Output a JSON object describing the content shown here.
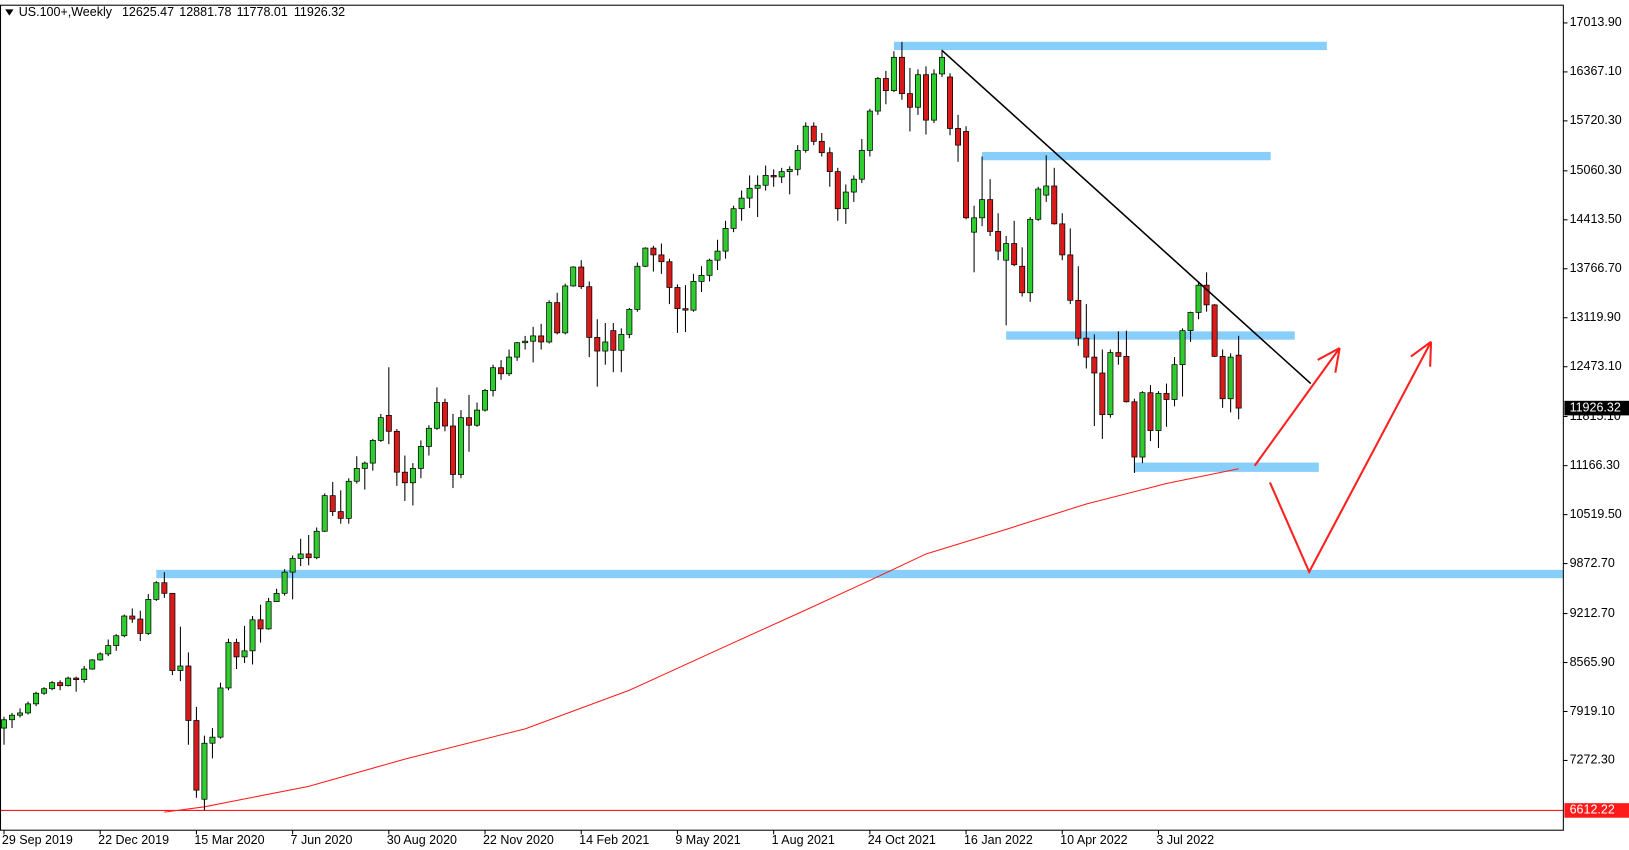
{
  "chart_data": {
    "type": "candlestick",
    "title": "US.100+,Weekly",
    "categories": [
      "29 Sep 2019",
      null,
      null,
      null,
      null,
      null,
      null,
      null,
      null,
      null,
      null,
      null,
      "22 Dec 2019",
      null,
      null,
      null,
      null,
      null,
      null,
      null,
      null,
      null,
      null,
      null,
      "15 Mar 2020",
      null,
      null,
      null,
      null,
      null,
      null,
      null,
      null,
      null,
      null,
      null,
      "7 Jun 2020",
      null,
      null,
      null,
      null,
      null,
      null,
      null,
      null,
      null,
      null,
      null,
      "30 Aug 2020",
      null,
      null,
      null,
      null,
      null,
      null,
      null,
      null,
      null,
      null,
      null,
      "22 Nov 2020",
      null,
      null,
      null,
      null,
      null,
      null,
      null,
      null,
      null,
      null,
      null,
      "14 Feb 2021",
      null,
      null,
      null,
      null,
      null,
      null,
      null,
      null,
      null,
      null,
      null,
      "9 May 2021",
      null,
      null,
      null,
      null,
      null,
      null,
      null,
      null,
      null,
      null,
      null,
      "1 Aug 2021",
      null,
      null,
      null,
      null,
      null,
      null,
      null,
      null,
      null,
      null,
      null,
      "24 Oct 2021",
      null,
      null,
      null,
      null,
      null,
      null,
      null,
      null,
      null,
      null,
      null,
      "16 Jan 2022",
      null,
      null,
      null,
      null,
      null,
      null,
      null,
      null,
      null,
      null,
      null,
      "10 Apr 2022",
      null,
      null,
      null,
      null,
      null,
      null,
      null,
      null,
      null,
      null,
      null,
      "3 Jul 2022",
      null,
      null,
      null,
      null,
      null,
      null,
      null,
      null,
      null,
      null
    ],
    "ohlc": [
      [
        7700,
        7850,
        7480,
        7810
      ],
      [
        7810,
        7900,
        7700,
        7870
      ],
      [
        7870,
        7960,
        7840,
        7900
      ],
      [
        7900,
        8050,
        7880,
        8020
      ],
      [
        8020,
        8180,
        7990,
        8160
      ],
      [
        8160,
        8240,
        8140,
        8220
      ],
      [
        8220,
        8320,
        8200,
        8300
      ],
      [
        8300,
        8330,
        8200,
        8260
      ],
      [
        8260,
        8380,
        8250,
        8360
      ],
      [
        8360,
        8380,
        8180,
        8340
      ],
      [
        8340,
        8520,
        8300,
        8480
      ],
      [
        8480,
        8610,
        8470,
        8600
      ],
      [
        8600,
        8700,
        8590,
        8680
      ],
      [
        8680,
        8870,
        8650,
        8790
      ],
      [
        8790,
        8940,
        8720,
        8920
      ],
      [
        8920,
        9200,
        8900,
        9180
      ],
      [
        9180,
        9280,
        9090,
        9140
      ],
      [
        9140,
        9250,
        8850,
        8950
      ],
      [
        8950,
        9470,
        8930,
        9400
      ],
      [
        9400,
        9640,
        9380,
        9620
      ],
      [
        9620,
        9760,
        9420,
        9480
      ],
      [
        9480,
        9480,
        8400,
        8460
      ],
      [
        8460,
        9040,
        8320,
        8520
      ],
      [
        8520,
        8700,
        7480,
        7800
      ],
      [
        7800,
        7980,
        6780,
        6880
      ],
      [
        6760,
        7600,
        6612,
        7500
      ],
      [
        7500,
        7700,
        7300,
        7580
      ],
      [
        7580,
        8300,
        7560,
        8230
      ],
      [
        8230,
        8880,
        8200,
        8830
      ],
      [
        8830,
        8880,
        8480,
        8640
      ],
      [
        8640,
        9050,
        8560,
        8720
      ],
      [
        8720,
        9180,
        8540,
        9130
      ],
      [
        9130,
        9330,
        8830,
        9010
      ],
      [
        9010,
        9420,
        9000,
        9370
      ],
      [
        9370,
        9540,
        9370,
        9480
      ],
      [
        9480,
        9800,
        9450,
        9760
      ],
      [
        9760,
        9980,
        9400,
        9940
      ],
      [
        9940,
        10200,
        9840,
        10000
      ],
      [
        10000,
        10250,
        9850,
        9950
      ],
      [
        9950,
        10350,
        9930,
        10300
      ],
      [
        10300,
        10800,
        10290,
        10770
      ],
      [
        10770,
        10950,
        10500,
        10560
      ],
      [
        10560,
        10840,
        10400,
        10470
      ],
      [
        10470,
        11000,
        10400,
        10960
      ],
      [
        10960,
        11290,
        10930,
        11130
      ],
      [
        11130,
        11220,
        10850,
        11200
      ],
      [
        11200,
        11520,
        11100,
        11500
      ],
      [
        11500,
        11850,
        11480,
        11800
      ],
      [
        11830,
        12466,
        11450,
        11620
      ],
      [
        11620,
        11650,
        10900,
        11080
      ],
      [
        11080,
        11300,
        10700,
        10940
      ],
      [
        10940,
        11200,
        10640,
        11130
      ],
      [
        11130,
        11500,
        11000,
        11420
      ],
      [
        11420,
        11700,
        11300,
        11660
      ],
      [
        11660,
        12200,
        11640,
        12000
      ],
      [
        12000,
        12050,
        11620,
        11690
      ],
      [
        11690,
        11850,
        10870,
        11050
      ],
      [
        11050,
        11900,
        11000,
        11800
      ],
      [
        11800,
        12100,
        11350,
        11700
      ],
      [
        11700,
        12000,
        11680,
        11900
      ],
      [
        11900,
        12180,
        11880,
        12160
      ],
      [
        12160,
        12500,
        12080,
        12460
      ],
      [
        12460,
        12560,
        12300,
        12380
      ],
      [
        12380,
        12700,
        12350,
        12600
      ],
      [
        12600,
        12800,
        12550,
        12790
      ],
      [
        12790,
        12880,
        12700,
        12810
      ],
      [
        12810,
        13000,
        12530,
        12880
      ],
      [
        12880,
        13040,
        12700,
        12800
      ],
      [
        12800,
        13350,
        12780,
        13320
      ],
      [
        13320,
        13450,
        12900,
        12920
      ],
      [
        12920,
        13570,
        12900,
        13540
      ],
      [
        13540,
        13800,
        13530,
        13790
      ],
      [
        13790,
        13880,
        13500,
        13530
      ],
      [
        13530,
        13600,
        12600,
        12860
      ],
      [
        12860,
        13100,
        12210,
        12680
      ],
      [
        12680,
        13050,
        12500,
        12800
      ],
      [
        12950,
        13050,
        12400,
        12690
      ],
      [
        12690,
        12980,
        12400,
        12900
      ],
      [
        12900,
        13250,
        12850,
        13230
      ],
      [
        13230,
        13850,
        13200,
        13800
      ],
      [
        13800,
        14050,
        13790,
        14040
      ],
      [
        14040,
        14070,
        13730,
        13950
      ],
      [
        13950,
        14100,
        13700,
        13860
      ],
      [
        13860,
        13900,
        13300,
        13520
      ],
      [
        13520,
        13560,
        12920,
        13240
      ],
      [
        13240,
        13550,
        12930,
        13220
      ],
      [
        13220,
        13700,
        13200,
        13600
      ],
      [
        13600,
        13800,
        13460,
        13680
      ],
      [
        13680,
        13900,
        13600,
        13880
      ],
      [
        13880,
        14150,
        13750,
        14000
      ],
      [
        14000,
        14400,
        13900,
        14300
      ],
      [
        14300,
        14600,
        14250,
        14560
      ],
      [
        14560,
        14800,
        14400,
        14700
      ],
      [
        14700,
        15000,
        14570,
        14830
      ],
      [
        14830,
        15000,
        14450,
        14870
      ],
      [
        14870,
        15130,
        14800,
        15000
      ],
      [
        15000,
        15080,
        14850,
        14980
      ],
      [
        14980,
        15100,
        14900,
        15050
      ],
      [
        15050,
        15120,
        14750,
        15080
      ],
      [
        15080,
        15400,
        15000,
        15330
      ],
      [
        15330,
        15700,
        15300,
        15650
      ],
      [
        15650,
        15700,
        15400,
        15450
      ],
      [
        15450,
        15560,
        15250,
        15300
      ],
      [
        15300,
        15370,
        14850,
        15050
      ],
      [
        15050,
        15100,
        14400,
        14560
      ],
      [
        14560,
        14880,
        14360,
        14780
      ],
      [
        14780,
        15000,
        14650,
        14950
      ],
      [
        14950,
        15480,
        14900,
        15330
      ],
      [
        15330,
        15880,
        15250,
        15850
      ],
      [
        15850,
        16300,
        15800,
        16280
      ],
      [
        16280,
        16380,
        15940,
        16120
      ],
      [
        16120,
        16640,
        16100,
        16560
      ],
      [
        16560,
        16764,
        16000,
        16080
      ],
      [
        16080,
        16420,
        15580,
        15900
      ],
      [
        15900,
        16400,
        15800,
        16330
      ],
      [
        16330,
        16440,
        15540,
        15730
      ],
      [
        15730,
        16400,
        15690,
        16340
      ],
      [
        16340,
        16660,
        16300,
        16560
      ],
      [
        16300,
        16350,
        15530,
        15620
      ],
      [
        15620,
        15800,
        15180,
        15400
      ],
      [
        15580,
        15650,
        14420,
        14440
      ],
      [
        14250,
        14600,
        13720,
        14440
      ],
      [
        14440,
        15250,
        14330,
        14680
      ],
      [
        14680,
        14950,
        14200,
        14260
      ],
      [
        14260,
        14500,
        13880,
        14000
      ],
      [
        13880,
        14200,
        13020,
        14100
      ],
      [
        14100,
        14400,
        13800,
        13820
      ],
      [
        13800,
        14050,
        13400,
        13450
      ],
      [
        13450,
        14450,
        13330,
        14420
      ],
      [
        14420,
        14850,
        14400,
        14820
      ],
      [
        14740,
        15265,
        14650,
        14860
      ],
      [
        14860,
        15100,
        14350,
        14360
      ],
      [
        14360,
        14500,
        13880,
        13950
      ],
      [
        13950,
        14300,
        13300,
        13350
      ],
      [
        13350,
        13800,
        12750,
        12850
      ],
      [
        12850,
        13300,
        12450,
        12600
      ],
      [
        12600,
        12900,
        11690,
        12390
      ],
      [
        12390,
        12700,
        11520,
        11840
      ],
      [
        11840,
        12700,
        11800,
        12660
      ],
      [
        12660,
        12940,
        12500,
        12610
      ],
      [
        12610,
        12950,
        12000,
        12010
      ],
      [
        12010,
        12050,
        11070,
        11280
      ],
      [
        11280,
        12150,
        11200,
        12130
      ],
      [
        12130,
        12230,
        11490,
        11630
      ],
      [
        11630,
        12150,
        11400,
        12120
      ],
      [
        12120,
        12250,
        11680,
        12040
      ],
      [
        12040,
        12600,
        11950,
        12500
      ],
      [
        12500,
        12980,
        12080,
        12950
      ],
      [
        12950,
        13200,
        12800,
        13190
      ],
      [
        13190,
        13600,
        13100,
        13550
      ],
      [
        13550,
        13720,
        13200,
        13290
      ],
      [
        13290,
        13300,
        12600,
        12610
      ],
      [
        12610,
        12700,
        11930,
        12050
      ],
      [
        12050,
        12650,
        11870,
        12600
      ],
      [
        12625.47,
        12881.78,
        11778.01,
        11926.32
      ]
    ],
    "up_color": "#2ecc2e",
    "down_color": "#d91a1a",
    "xlim": [
      -0.5,
      194.5
    ],
    "ylim": [
      6351,
      17248
    ],
    "yticks": [
      {
        "value": 17013.9,
        "label": "17013.90"
      },
      {
        "value": 16367.1,
        "label": "16367.10"
      },
      {
        "value": 15720.3,
        "label": "15720.30"
      },
      {
        "value": 15060.3,
        "label": "15060.30"
      },
      {
        "value": 14413.5,
        "label": "14413.50"
      },
      {
        "value": 13766.7,
        "label": "13766.70"
      },
      {
        "value": 13119.9,
        "label": "13119.90"
      },
      {
        "value": 12473.1,
        "label": "12473.10"
      },
      {
        "value": 11815.1,
        "label": "11815.10"
      },
      {
        "value": 11166.3,
        "label": "11166.30"
      },
      {
        "value": 10519.5,
        "label": "10519.50"
      },
      {
        "value": 9872.7,
        "label": "9872.70"
      },
      {
        "value": 9212.7,
        "label": "9212.70"
      },
      {
        "value": 8565.9,
        "label": "8565.90"
      },
      {
        "value": 7919.1,
        "label": "7919.10"
      },
      {
        "value": 7272.3,
        "label": "7272.30"
      }
    ],
    "moving_average": {
      "color": "#ff1a1a",
      "x": [
        20,
        25,
        38,
        50,
        65,
        78,
        90,
        100,
        108,
        115,
        125,
        135,
        145,
        154
      ],
      "values": [
        6590,
        6660,
        6930,
        7290,
        7690,
        8200,
        8780,
        9260,
        9650,
        10000,
        10325,
        10660,
        10930,
        11125
      ]
    },
    "horizontal_line": {
      "color": "#ff1a1a",
      "value": 6612.22
    },
    "zones": {
      "color": "#87cefa",
      "items": [
        {
          "from": 111,
          "to": 165,
          "low": 16655,
          "high": 16765
        },
        {
          "from": 122,
          "to": 158,
          "low": 15200,
          "high": 15310
        },
        {
          "from": 125,
          "to": 161,
          "low": 12830,
          "high": 12940
        },
        {
          "from": 141,
          "to": 164,
          "low": 11084,
          "high": 11207
        },
        {
          "from": 19,
          "to": 194.5,
          "low": 9680,
          "high": 9790
        }
      ]
    },
    "trendline": {
      "color": "#000000",
      "x": [
        117,
        163
      ],
      "values": [
        16650,
        12250
      ]
    },
    "projections": {
      "color": "#ff2020",
      "paths": [
        {
          "x": [
            156,
            166.6
          ],
          "values": [
            11165,
            12720
          ]
        },
        {
          "x": [
            157.9,
            162.8,
            178
          ],
          "values": [
            10945,
            9763,
            12803
          ]
        }
      ]
    }
  }
}
